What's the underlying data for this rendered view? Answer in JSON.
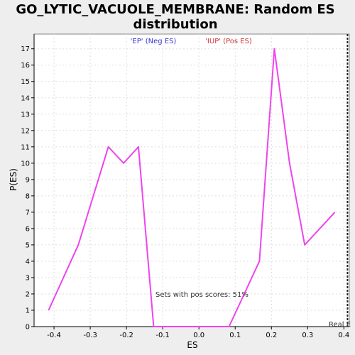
{
  "chart_data": {
    "type": "line",
    "title": "GO_LYTIC_VACUOLE_MEMBRANE: Random ES distribution",
    "title_lines": [
      "GO_LYTIC_VACUOLE_MEMBRANE: Random ES",
      "distribution"
    ],
    "xlabel": "ES",
    "ylabel": "P(ES)",
    "xlim": [
      -0.455,
      0.415
    ],
    "ylim": [
      0,
      17.9
    ],
    "x_ticks": [
      -0.4,
      -0.3,
      -0.2,
      -0.1,
      0.0,
      0.1,
      0.2,
      0.3,
      0.4
    ],
    "x_tick_labels": [
      "-0.4",
      "-0.3",
      "-0.2",
      "-0.1",
      "0.0",
      "0.1",
      "0.2",
      "0.3",
      "0.4"
    ],
    "y_ticks": [
      0,
      1,
      2,
      3,
      4,
      5,
      6,
      7,
      8,
      9,
      10,
      11,
      12,
      13,
      14,
      15,
      16,
      17
    ],
    "y_tick_labels": [
      "0",
      "1",
      "2",
      "3",
      "4",
      "5",
      "6",
      "7",
      "8",
      "9",
      "10",
      "11",
      "12",
      "13",
      "14",
      "15",
      "16",
      "17"
    ],
    "grid": true,
    "series": [
      {
        "color": "#ee44ee",
        "x": [
          -0.415,
          -0.333,
          -0.25,
          -0.208,
          -0.167,
          -0.125,
          -0.083,
          -0.042,
          0.0,
          0.042,
          0.083,
          0.167,
          0.208,
          0.25,
          0.292,
          0.375
        ],
        "y": [
          1,
          5,
          11,
          10,
          11,
          0,
          0,
          0,
          0,
          0,
          0,
          4,
          17,
          10,
          5,
          7
        ]
      }
    ],
    "legend": [
      {
        "label": "'EP' (Neg ES)",
        "color": "#3333cc"
      },
      {
        "label": "'IUP' (Pos ES)",
        "color": "#cc3333"
      }
    ],
    "annotations": [
      {
        "text": "Sets with pos scores: 51%"
      },
      {
        "text": "Real E"
      }
    ],
    "real_es_x": 0.41
  },
  "colors": {
    "background": "#eeeeee",
    "plot_background": "#ffffff",
    "grid": "#dddddd",
    "line": "#ee44ee"
  }
}
